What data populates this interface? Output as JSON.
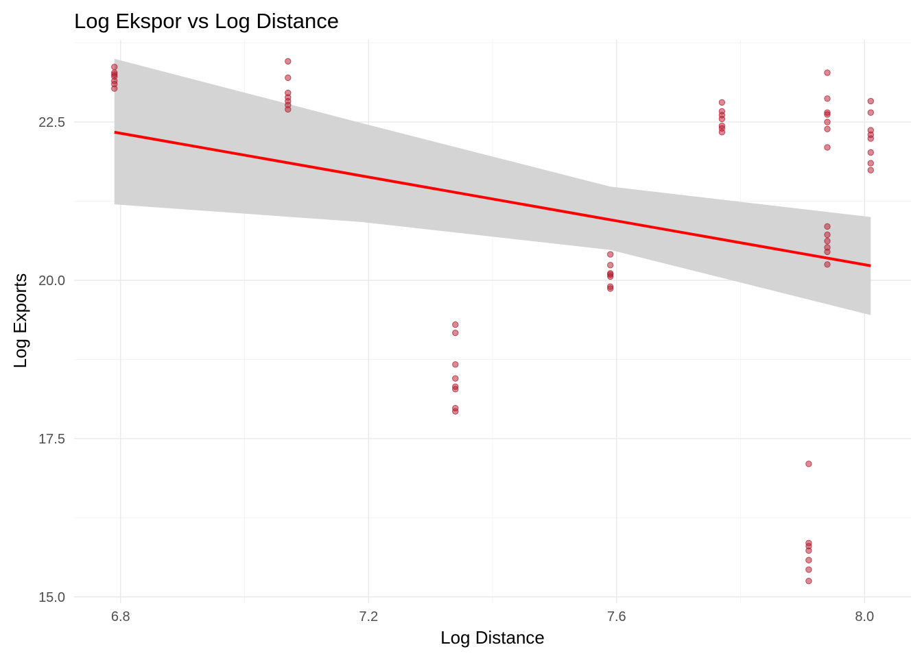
{
  "chart_data": {
    "type": "scatter",
    "title": "Log Ekspor vs Log Distance",
    "xlabel": "Log Distance",
    "ylabel": "Log Exports",
    "xlim": [
      6.725,
      8.075
    ],
    "ylim": [
      14.9,
      23.8
    ],
    "x_ticks": [
      6.8,
      7.2,
      7.6,
      8.0
    ],
    "x_tick_labels": [
      "6.8",
      "7.2",
      "7.6",
      "8.0"
    ],
    "y_ticks": [
      15.0,
      17.5,
      20.0,
      22.5
    ],
    "y_tick_labels": [
      "15.0",
      "17.5",
      "20.0",
      "22.5"
    ],
    "grid": true,
    "point_color": "#b2182b",
    "points": [
      {
        "x": 6.79,
        "y": 23.37
      },
      {
        "x": 6.79,
        "y": 23.28
      },
      {
        "x": 6.79,
        "y": 23.25
      },
      {
        "x": 6.79,
        "y": 23.22
      },
      {
        "x": 6.79,
        "y": 23.15
      },
      {
        "x": 6.79,
        "y": 23.1
      },
      {
        "x": 6.79,
        "y": 23.03
      },
      {
        "x": 7.07,
        "y": 23.46
      },
      {
        "x": 7.07,
        "y": 23.2
      },
      {
        "x": 7.07,
        "y": 22.96
      },
      {
        "x": 7.07,
        "y": 22.89
      },
      {
        "x": 7.07,
        "y": 22.83
      },
      {
        "x": 7.07,
        "y": 22.77
      },
      {
        "x": 7.07,
        "y": 22.7
      },
      {
        "x": 7.34,
        "y": 19.3
      },
      {
        "x": 7.34,
        "y": 19.17
      },
      {
        "x": 7.34,
        "y": 18.67
      },
      {
        "x": 7.34,
        "y": 18.45
      },
      {
        "x": 7.34,
        "y": 18.32
      },
      {
        "x": 7.34,
        "y": 18.28
      },
      {
        "x": 7.34,
        "y": 17.98
      },
      {
        "x": 7.34,
        "y": 17.93
      },
      {
        "x": 7.59,
        "y": 20.41
      },
      {
        "x": 7.59,
        "y": 20.24
      },
      {
        "x": 7.59,
        "y": 20.11
      },
      {
        "x": 7.59,
        "y": 20.09
      },
      {
        "x": 7.59,
        "y": 20.06
      },
      {
        "x": 7.59,
        "y": 19.9
      },
      {
        "x": 7.59,
        "y": 19.87
      },
      {
        "x": 7.77,
        "y": 22.81
      },
      {
        "x": 7.77,
        "y": 22.67
      },
      {
        "x": 7.77,
        "y": 22.61
      },
      {
        "x": 7.77,
        "y": 22.55
      },
      {
        "x": 7.77,
        "y": 22.44
      },
      {
        "x": 7.77,
        "y": 22.4
      },
      {
        "x": 7.77,
        "y": 22.34
      },
      {
        "x": 7.91,
        "y": 17.1
      },
      {
        "x": 7.91,
        "y": 15.85
      },
      {
        "x": 7.91,
        "y": 15.8
      },
      {
        "x": 7.91,
        "y": 15.73
      },
      {
        "x": 7.91,
        "y": 15.58
      },
      {
        "x": 7.91,
        "y": 15.43
      },
      {
        "x": 7.91,
        "y": 15.25
      },
      {
        "x": 7.94,
        "y": 23.28
      },
      {
        "x": 7.94,
        "y": 22.87
      },
      {
        "x": 7.94,
        "y": 22.65
      },
      {
        "x": 7.94,
        "y": 22.62
      },
      {
        "x": 7.94,
        "y": 22.5
      },
      {
        "x": 7.94,
        "y": 22.39
      },
      {
        "x": 7.94,
        "y": 22.1
      },
      {
        "x": 7.94,
        "y": 20.85
      },
      {
        "x": 7.94,
        "y": 20.72
      },
      {
        "x": 7.94,
        "y": 20.62
      },
      {
        "x": 7.94,
        "y": 20.52
      },
      {
        "x": 7.94,
        "y": 20.45
      },
      {
        "x": 7.94,
        "y": 20.25
      },
      {
        "x": 8.01,
        "y": 22.83
      },
      {
        "x": 8.01,
        "y": 22.65
      },
      {
        "x": 8.01,
        "y": 22.37
      },
      {
        "x": 8.01,
        "y": 22.3
      },
      {
        "x": 8.01,
        "y": 22.24
      },
      {
        "x": 8.01,
        "y": 22.02
      },
      {
        "x": 8.01,
        "y": 21.85
      },
      {
        "x": 8.01,
        "y": 21.74
      }
    ],
    "trend_line": {
      "color": "#ff0000",
      "start": {
        "x": 6.79,
        "y": 22.34
      },
      "end": {
        "x": 8.01,
        "y": 20.23
      }
    },
    "confidence_band": {
      "color": "#d4d4d4",
      "x": [
        6.79,
        7.19,
        7.59,
        8.01
      ],
      "upper": [
        23.5,
        22.48,
        21.48,
        21.0
      ],
      "lower": [
        21.2,
        20.92,
        20.48,
        19.45
      ]
    }
  }
}
